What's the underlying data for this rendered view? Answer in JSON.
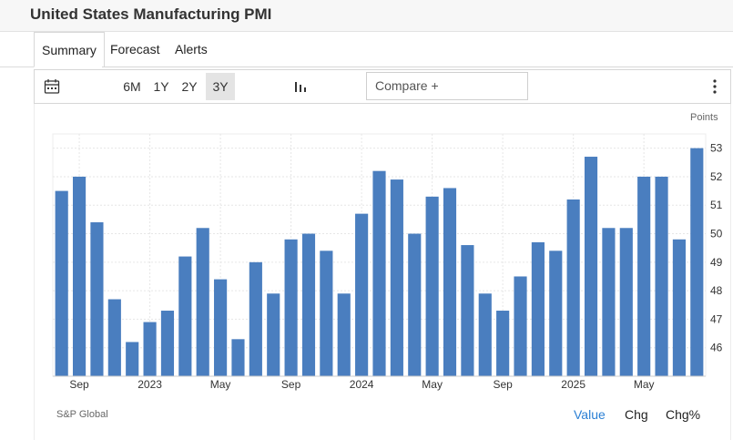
{
  "header": {
    "title": "United States Manufacturing PMI"
  },
  "tabs": [
    {
      "label": "Summary",
      "active": true
    },
    {
      "label": "Forecast",
      "active": false
    },
    {
      "label": "Alerts",
      "active": false
    }
  ],
  "toolbar": {
    "calendar_icon": "calendar-icon",
    "ranges": [
      {
        "label": "6M",
        "active": false
      },
      {
        "label": "1Y",
        "active": false
      },
      {
        "label": "2Y",
        "active": false
      },
      {
        "label": "3Y",
        "active": true
      }
    ],
    "chart_type_icon": "bar-chart-icon",
    "compare_label": "Compare +",
    "more_icon": "vertical-dots-icon"
  },
  "chart_data": {
    "type": "bar",
    "ylabel": "Points",
    "ylim": [
      45,
      53.5
    ],
    "yticks": [
      46,
      47,
      48,
      49,
      50,
      51,
      52,
      53
    ],
    "grid": true,
    "bar_color": "#4a7ebf",
    "x": [
      "2022-08",
      "2022-09",
      "2022-10",
      "2022-11",
      "2022-12",
      "2023-01",
      "2023-02",
      "2023-03",
      "2023-04",
      "2023-05",
      "2023-06",
      "2023-07",
      "2023-08",
      "2023-09",
      "2023-10",
      "2023-11",
      "2023-12",
      "2024-01",
      "2024-02",
      "2024-03",
      "2024-04",
      "2024-05",
      "2024-06",
      "2024-07",
      "2024-08",
      "2024-09",
      "2024-10",
      "2024-11",
      "2024-12",
      "2025-01",
      "2025-02",
      "2025-03",
      "2025-04",
      "2025-05",
      "2025-06",
      "2025-07",
      "2025-08"
    ],
    "values": [
      51.5,
      52.0,
      50.4,
      47.7,
      46.2,
      46.9,
      47.3,
      49.2,
      50.2,
      48.4,
      46.3,
      49.0,
      47.9,
      49.8,
      50.0,
      49.4,
      47.9,
      50.7,
      52.2,
      51.9,
      50.0,
      51.3,
      51.6,
      49.6,
      47.9,
      47.3,
      48.5,
      49.7,
      49.4,
      51.2,
      52.7,
      50.2,
      50.2,
      52.0,
      52.0,
      49.8,
      53.0
    ],
    "xtick_labels": [
      {
        "label": "Sep",
        "at": "2022-09"
      },
      {
        "label": "2023",
        "at": "2023-01"
      },
      {
        "label": "May",
        "at": "2023-05"
      },
      {
        "label": "Sep",
        "at": "2023-09"
      },
      {
        "label": "2024",
        "at": "2024-01"
      },
      {
        "label": "May",
        "at": "2024-05"
      },
      {
        "label": "Sep",
        "at": "2024-09"
      },
      {
        "label": "2025",
        "at": "2025-01"
      },
      {
        "label": "May",
        "at": "2025-05"
      }
    ]
  },
  "footer": {
    "source": "S&P Global",
    "modes": [
      {
        "label": "Value",
        "active": true
      },
      {
        "label": "Chg",
        "active": false
      },
      {
        "label": "Chg%",
        "active": false
      }
    ]
  }
}
